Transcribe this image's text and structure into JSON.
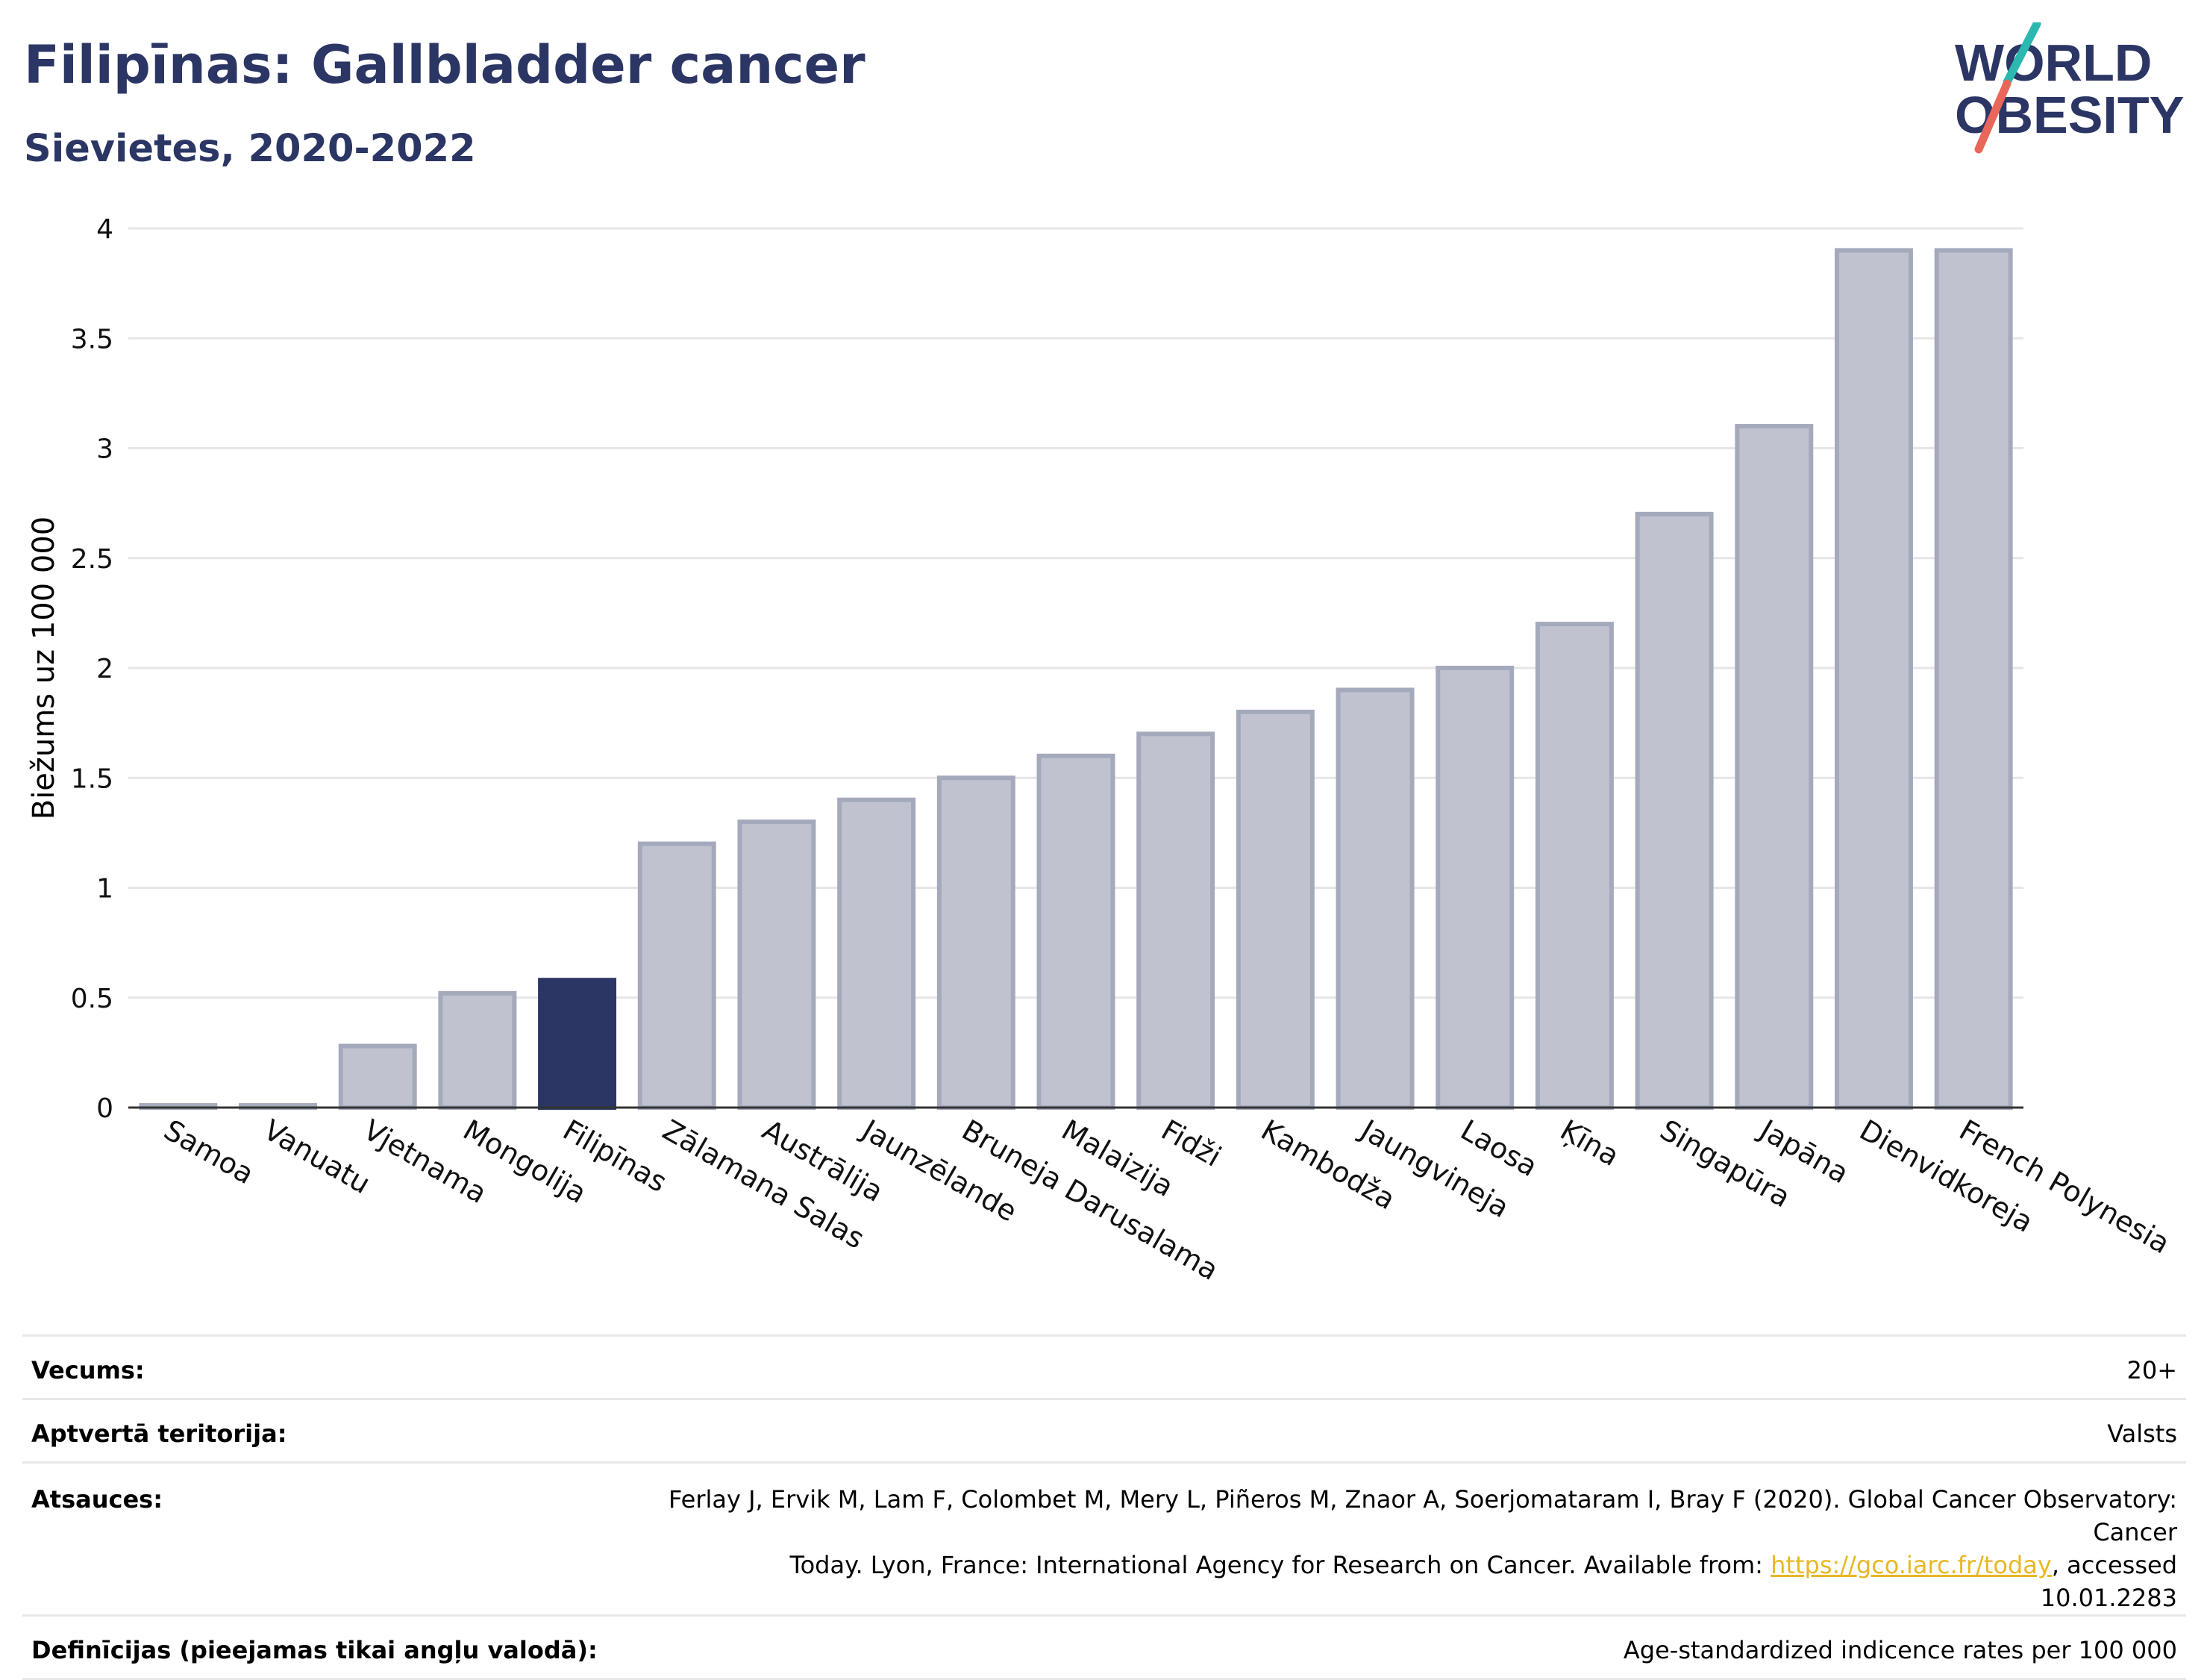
{
  "title": "Filipīnas: Gallbladder cancer",
  "subtitle": "Sievietes, 2020-2022",
  "logo": {
    "line1": "WORLD",
    "line2": "OBESITY",
    "accent_teal": "#2ab8b0",
    "accent_coral": "#e8675a",
    "color": "#2b3665"
  },
  "chart_data": {
    "type": "bar",
    "categories": [
      "Samoa",
      "Vanuatu",
      "Vjetnama",
      "Mongolija",
      "Filipīnas",
      "Zālamana Salas",
      "Austrālija",
      "Jaunzēlande",
      "Bruneja Darusalama",
      "Malaizija",
      "Fidži",
      "Kambodža",
      "Jaungvineja",
      "Laosa",
      "Ķīna",
      "Singapūra",
      "Japāna",
      "Dienvidkoreja",
      "French Polynesia"
    ],
    "values": [
      0.01,
      0.01,
      0.28,
      0.52,
      0.58,
      1.2,
      1.3,
      1.4,
      1.5,
      1.6,
      1.7,
      1.8,
      1.9,
      2.0,
      2.2,
      2.7,
      3.1,
      3.9,
      3.9
    ],
    "highlight": "Filipīnas",
    "ylabel": "Biežums uz 100 000",
    "ylim": [
      0,
      4
    ],
    "yticks": [
      "0",
      "0.5",
      "1",
      "1.5",
      "2",
      "2.5",
      "3",
      "3.5",
      "4"
    ],
    "grid": true,
    "colors": {
      "bar": "#c0c3cf",
      "bar_border": "#a4a9bc",
      "highlight": "#2b3665"
    }
  },
  "info": {
    "age_label": "Vecums:",
    "age_value": "20+",
    "area_label": "Aptvertā teritorija:",
    "area_value": "Valsts",
    "refs_label": "Atsauces:",
    "refs_line1": "Ferlay J, Ervik M, Lam F, Colombet M, Mery L, Piñeros M, Znaor A, Soerjomataram I, Bray F (2020). Global Cancer Observatory: Cancer",
    "refs_line2_pre": "Today. Lyon, France: International Agency for Research on Cancer. Available from: ",
    "refs_link": "https://gco.iarc.fr/today",
    "refs_line2_post": ", accessed 10.01.2283",
    "defs_label": "Definīcijas (pieejamas tikai angļu valodā):",
    "defs_value": "Age-standardized indicence rates per 100 000"
  }
}
